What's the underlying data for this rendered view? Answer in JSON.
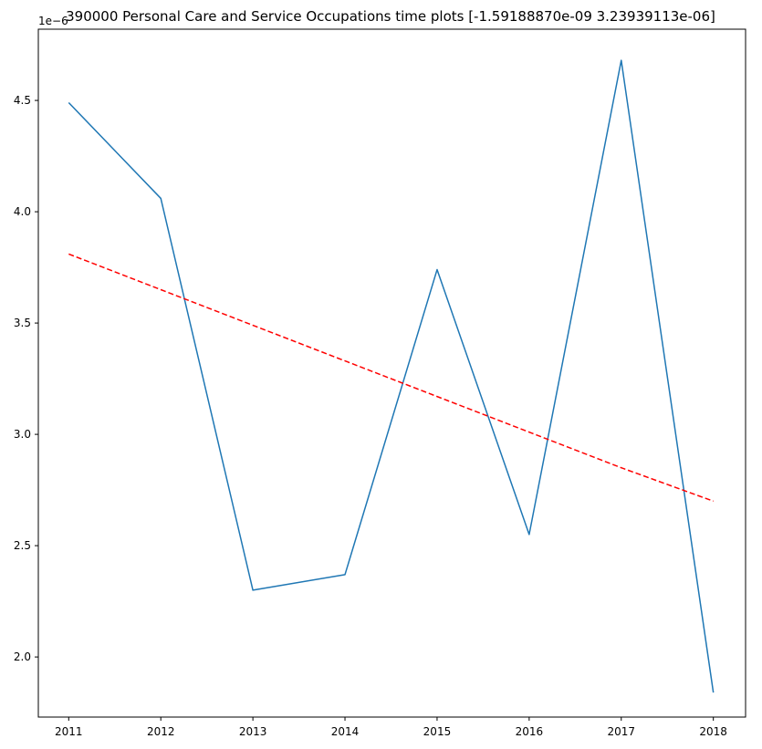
{
  "chart_data": {
    "type": "line",
    "title": "390000 Personal Care and Service Occupations time plots [-1.59188870e-09  3.23939113e-06]",
    "xlabel": "",
    "ylabel": "",
    "y_offset_label": "1e−6",
    "x": [
      2011,
      2012,
      2013,
      2014,
      2015,
      2016,
      2017,
      2018
    ],
    "x_tick_labels": [
      "2011",
      "2012",
      "2013",
      "2014",
      "2015",
      "2016",
      "2017",
      "2018"
    ],
    "y_ticks": [
      2.0,
      2.5,
      3.0,
      3.5,
      4.0,
      4.5
    ],
    "y_tick_labels": [
      "2.0",
      "2.5",
      "3.0",
      "3.5",
      "4.0",
      "4.5"
    ],
    "ylim": [
      1.73,
      4.82
    ],
    "xlim": [
      2010.67,
      2018.35
    ],
    "grid": false,
    "series": [
      {
        "style": "solid",
        "color": "#1f77b4",
        "values": [
          4.49,
          4.06,
          2.3,
          2.37,
          3.74,
          2.55,
          4.68,
          1.84
        ]
      },
      {
        "style": "dashed",
        "color": "#ff0000",
        "values": [
          3.81,
          3.65,
          3.49,
          3.33,
          3.17,
          3.01,
          2.85,
          2.7
        ]
      }
    ]
  }
}
